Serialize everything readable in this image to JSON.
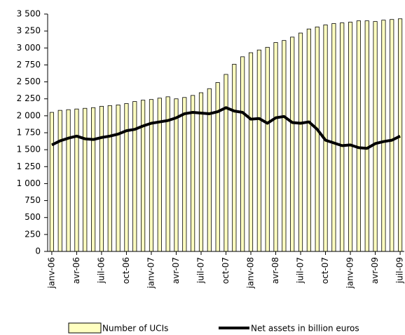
{
  "chart_data": {
    "type": "bar-line",
    "categories": [
      "janv-06",
      null,
      null,
      "avr-06",
      null,
      null,
      "juil-06",
      null,
      null,
      "oct-06",
      null,
      null,
      "janv-07",
      null,
      null,
      "avr-07",
      null,
      null,
      "juil-07",
      null,
      null,
      "oct-07",
      null,
      null,
      "janv-08",
      null,
      null,
      "avr-08",
      null,
      null,
      "juil-07",
      null,
      null,
      "oct-07",
      null,
      null,
      "janv-09",
      null,
      null,
      "avr-09",
      null,
      null,
      "juil-09"
    ],
    "series": [
      {
        "name": "Number of UCIs",
        "type": "bar",
        "color": "#ffffc0",
        "values": [
          2050,
          2080,
          2090,
          2100,
          2110,
          2120,
          2140,
          2150,
          2160,
          2180,
          2210,
          2230,
          2240,
          2260,
          2280,
          2250,
          2270,
          2300,
          2340,
          2400,
          2490,
          2610,
          2760,
          2870,
          2930,
          2970,
          3010,
          3080,
          3110,
          3160,
          3220,
          3280,
          3310,
          3340,
          3360,
          3370,
          3380,
          3400,
          3400,
          3390,
          3410,
          3420,
          3430
        ]
      },
      {
        "name": "Net assets in billion euros",
        "type": "line",
        "color": "#000000",
        "values": [
          1570,
          1630,
          1670,
          1700,
          1660,
          1650,
          1680,
          1700,
          1730,
          1780,
          1800,
          1850,
          1890,
          1910,
          1930,
          1970,
          2030,
          2050,
          2040,
          2030,
          2060,
          2120,
          2070,
          2050,
          1950,
          1960,
          1890,
          1970,
          1990,
          1900,
          1890,
          1910,
          1800,
          1640,
          1600,
          1560,
          1570,
          1530,
          1520,
          1590,
          1620,
          1640,
          1700
        ]
      }
    ],
    "ylim": [
      0,
      3500
    ],
    "yticks": [
      0,
      250,
      500,
      750,
      {
        "value": 1000,
        "label": "1 000"
      },
      {
        "value": 1250,
        "label": "1 250"
      },
      {
        "value": 1500,
        "label": "1 500"
      },
      {
        "value": 1750,
        "label": "1 750"
      },
      {
        "value": 2000,
        "label": "2 000"
      },
      {
        "value": 2250,
        "label": "2 250"
      },
      {
        "value": 2500,
        "label": "2 500"
      },
      {
        "value": 2750,
        "label": "2 750"
      },
      {
        "value": 3000,
        "label": "3 000"
      },
      {
        "value": 3250,
        "label": "3 250"
      },
      {
        "value": 3500,
        "label": "3 500"
      }
    ],
    "grid": false
  }
}
